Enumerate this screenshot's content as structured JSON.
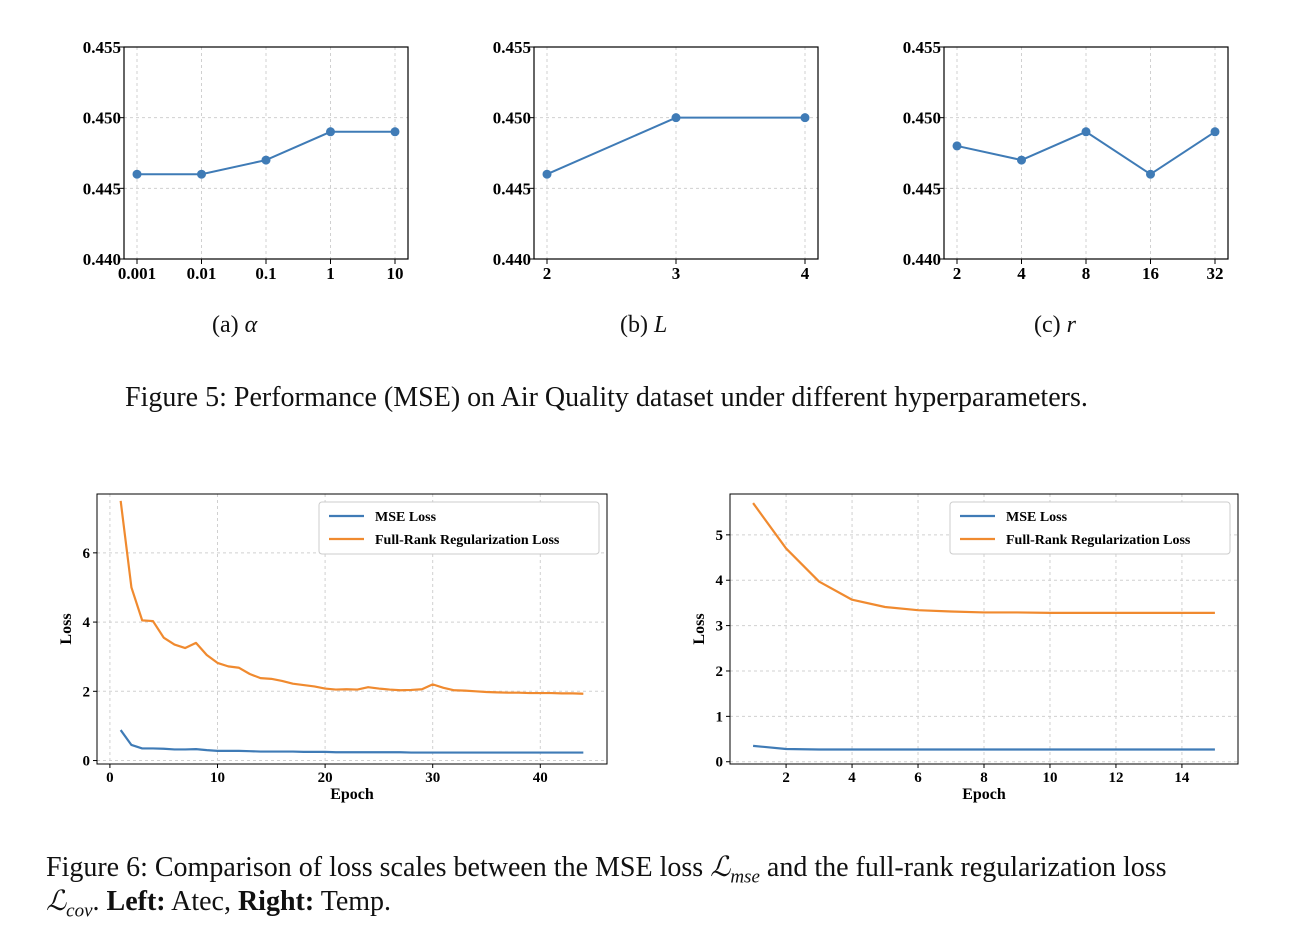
{
  "colors": {
    "blue": "#3f7bb6",
    "orange": "#f08a2f",
    "grid": "#d0d0d0"
  },
  "figure5": {
    "caption": "Figure 5: Performance (MSE) on Air Quality dataset under different hyperparameters.",
    "subcaptions": [
      {
        "label": "(a)",
        "symbol": "α"
      },
      {
        "label": "(b)",
        "symbol": "L"
      },
      {
        "label": "(c)",
        "symbol": "r"
      }
    ]
  },
  "figure6": {
    "caption_prefix": "Figure 6: Comparison of loss scales between the MSE loss",
    "loss_mse_symbol": "ℒ",
    "loss_mse_sub": "mse",
    "caption_mid": "and the full-rank regularization loss",
    "loss_cov_symbol": "ℒ",
    "loss_cov_sub": "cov",
    "left_label": "Left:",
    "left_value": "Atec,",
    "right_label": "Right:",
    "right_value": "Temp."
  },
  "chart_data": [
    {
      "type": "line",
      "title": "(a) α",
      "categories": [
        "0.001",
        "0.01",
        "0.1",
        "1",
        "10"
      ],
      "series": [
        {
          "name": "MSE",
          "values": [
            0.446,
            0.446,
            0.447,
            0.449,
            0.449
          ]
        }
      ],
      "ylim": [
        0.44,
        0.455
      ],
      "yticks": [
        "0.440",
        "0.445",
        "0.450",
        "0.455"
      ],
      "xlabel": "",
      "ylabel": ""
    },
    {
      "type": "line",
      "title": "(b) L",
      "categories": [
        "2",
        "3",
        "4"
      ],
      "series": [
        {
          "name": "MSE",
          "values": [
            0.446,
            0.45,
            0.45
          ]
        }
      ],
      "ylim": [
        0.44,
        0.455
      ],
      "yticks": [
        "0.440",
        "0.445",
        "0.450",
        "0.455"
      ],
      "xlabel": "",
      "ylabel": ""
    },
    {
      "type": "line",
      "title": "(c) r",
      "categories": [
        "2",
        "4",
        "8",
        "16",
        "32"
      ],
      "series": [
        {
          "name": "MSE",
          "values": [
            0.448,
            0.447,
            0.449,
            0.446,
            0.449
          ]
        }
      ],
      "ylim": [
        0.44,
        0.455
      ],
      "yticks": [
        "0.440",
        "0.445",
        "0.450",
        "0.455"
      ],
      "xlabel": "",
      "ylabel": ""
    },
    {
      "type": "line",
      "title": "Atec",
      "xlabel": "Epoch",
      "ylabel": "Loss",
      "xlim": [
        -1.2,
        46.2
      ],
      "ylim": [
        -0.1,
        7.7
      ],
      "xticks": [
        0,
        10,
        20,
        30,
        40
      ],
      "yticks": [
        0,
        2,
        4,
        6
      ],
      "legend": "top-right",
      "x": [
        1,
        2,
        3,
        4,
        5,
        6,
        7,
        8,
        9,
        10,
        11,
        12,
        13,
        14,
        15,
        16,
        17,
        18,
        19,
        20,
        21,
        22,
        23,
        24,
        25,
        26,
        27,
        28,
        29,
        30,
        31,
        32,
        33,
        34,
        35,
        36,
        37,
        38,
        39,
        40,
        41,
        42,
        43,
        44
      ],
      "series": [
        {
          "name": "MSE Loss",
          "values": [
            0.88,
            0.45,
            0.35,
            0.35,
            0.34,
            0.32,
            0.32,
            0.33,
            0.3,
            0.28,
            0.28,
            0.28,
            0.27,
            0.26,
            0.26,
            0.26,
            0.26,
            0.25,
            0.25,
            0.25,
            0.24,
            0.24,
            0.24,
            0.24,
            0.24,
            0.24,
            0.24,
            0.23,
            0.23,
            0.23,
            0.23,
            0.23,
            0.23,
            0.23,
            0.23,
            0.23,
            0.23,
            0.23,
            0.23,
            0.23,
            0.23,
            0.23,
            0.23,
            0.23
          ]
        },
        {
          "name": "Full-Rank Regularization Loss",
          "values": [
            7.5,
            5.0,
            4.05,
            4.03,
            3.55,
            3.35,
            3.25,
            3.4,
            3.05,
            2.82,
            2.72,
            2.68,
            2.5,
            2.38,
            2.36,
            2.3,
            2.22,
            2.18,
            2.14,
            2.08,
            2.05,
            2.06,
            2.05,
            2.12,
            2.08,
            2.05,
            2.03,
            2.04,
            2.06,
            2.2,
            2.1,
            2.03,
            2.02,
            2.0,
            1.98,
            1.97,
            1.96,
            1.96,
            1.95,
            1.95,
            1.95,
            1.94,
            1.94,
            1.93
          ]
        }
      ]
    },
    {
      "type": "line",
      "title": "Temp",
      "xlabel": "Epoch",
      "ylabel": "Loss",
      "xlim": [
        0.3,
        15.7
      ],
      "ylim": [
        -0.05,
        5.9
      ],
      "xticks": [
        2,
        4,
        6,
        8,
        10,
        12,
        14
      ],
      "yticks": [
        0,
        1,
        2,
        3,
        4,
        5
      ],
      "legend": "top-right",
      "x": [
        1,
        2,
        3,
        4,
        5,
        6,
        7,
        8,
        9,
        10,
        11,
        12,
        13,
        14,
        15
      ],
      "series": [
        {
          "name": "MSE Loss",
          "values": [
            0.35,
            0.28,
            0.27,
            0.27,
            0.27,
            0.27,
            0.27,
            0.27,
            0.27,
            0.27,
            0.27,
            0.27,
            0.27,
            0.27,
            0.27
          ]
        },
        {
          "name": "Full-Rank Regularization Loss",
          "values": [
            5.7,
            4.7,
            3.97,
            3.57,
            3.41,
            3.34,
            3.31,
            3.29,
            3.29,
            3.28,
            3.28,
            3.28,
            3.28,
            3.28,
            3.28
          ]
        }
      ]
    }
  ]
}
